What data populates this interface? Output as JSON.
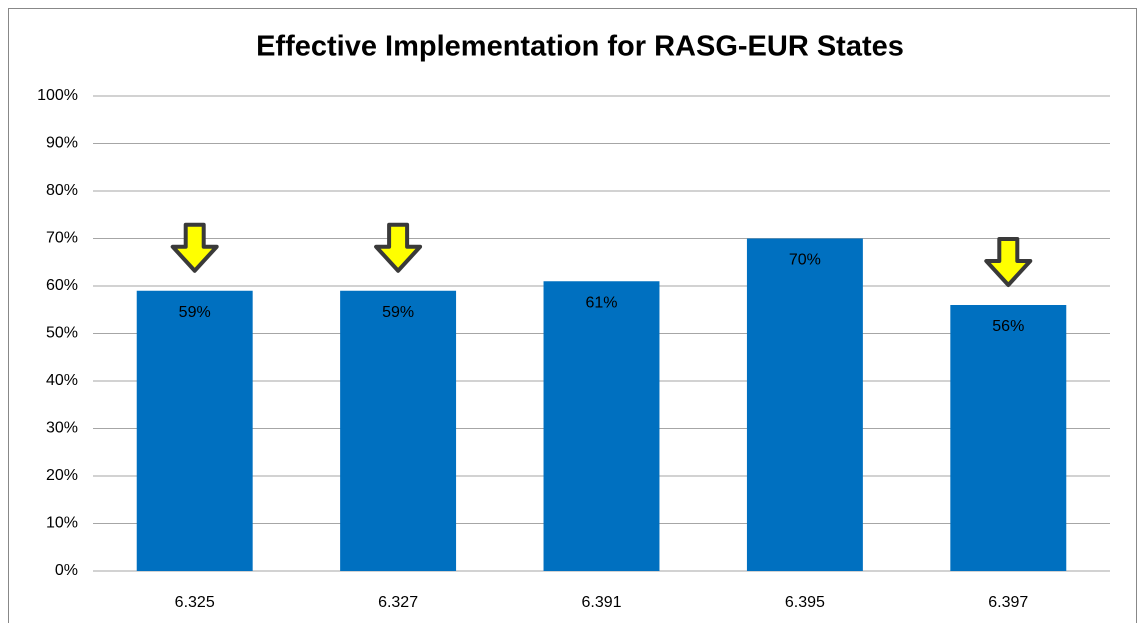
{
  "chart_data": {
    "type": "bar",
    "title": "Effective Implementation for RASG-EUR States",
    "categories": [
      "6.325",
      "6.327",
      "6.391",
      "6.395",
      "6.397"
    ],
    "values": [
      59,
      59,
      61,
      70,
      56
    ],
    "value_labels": [
      "59%",
      "59%",
      "61%",
      "70%",
      "56%"
    ],
    "color": "#0070c0",
    "markers": [
      true,
      true,
      false,
      false,
      true
    ],
    "ylim": [
      0,
      100
    ],
    "yticks": [
      {
        "value": 0,
        "label": "0%"
      },
      {
        "value": 10,
        "label": "10%"
      },
      {
        "value": 20,
        "label": "20%"
      },
      {
        "value": 30,
        "label": "30%"
      },
      {
        "value": 40,
        "label": "40%"
      },
      {
        "value": 50,
        "label": "50%"
      },
      {
        "value": 60,
        "label": "60%"
      },
      {
        "value": 70,
        "label": "70%"
      },
      {
        "value": 80,
        "label": "80%"
      },
      {
        "value": 90,
        "label": "90%"
      },
      {
        "value": 100,
        "label": "100%"
      }
    ],
    "grid": true
  }
}
